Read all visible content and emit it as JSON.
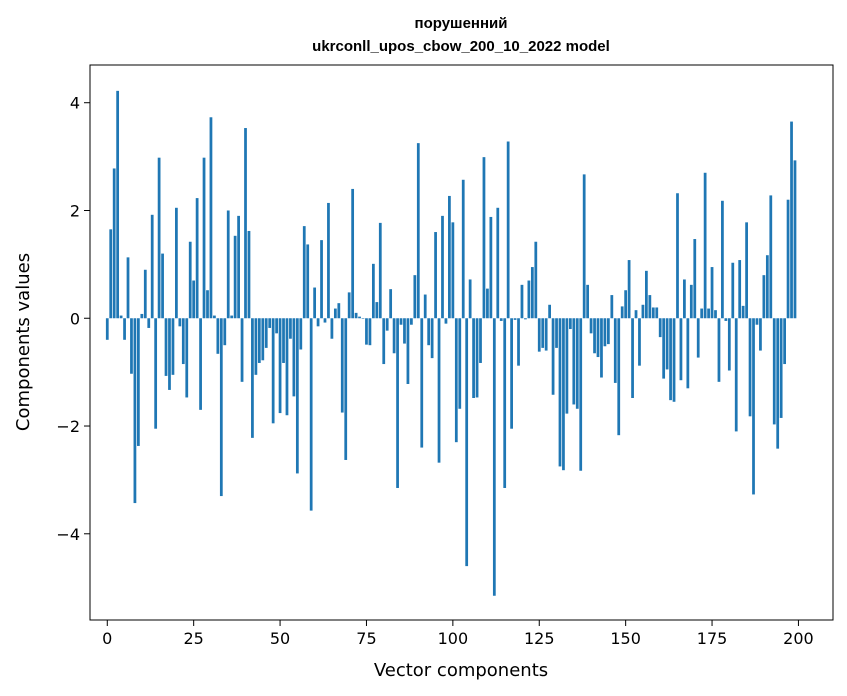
{
  "chart_data": {
    "type": "bar",
    "title": "порушенний",
    "subtitle": "ukrconll_upos_cbow_200_10_2022 model",
    "xlabel": "Vector components",
    "ylabel": "Components values",
    "xlim": [
      -5,
      210
    ],
    "ylim": [
      -5.6,
      4.7
    ],
    "xticks": [
      0,
      25,
      50,
      75,
      100,
      125,
      150,
      175,
      200
    ],
    "yticks": [
      -4,
      -2,
      0,
      2,
      4
    ],
    "ytick_labels": [
      "−4",
      "−2",
      "0",
      "2",
      "4"
    ],
    "grid": false,
    "bar_color": "#1f77b4",
    "x": [
      0,
      1,
      2,
      3,
      4,
      5,
      6,
      7,
      8,
      9,
      10,
      11,
      12,
      13,
      14,
      15,
      16,
      17,
      18,
      19,
      20,
      21,
      22,
      23,
      24,
      25,
      26,
      27,
      28,
      29,
      30,
      31,
      32,
      33,
      34,
      35,
      36,
      37,
      38,
      39,
      40,
      41,
      42,
      43,
      44,
      45,
      46,
      47,
      48,
      49,
      50,
      51,
      52,
      53,
      54,
      55,
      56,
      57,
      58,
      59,
      60,
      61,
      62,
      63,
      64,
      65,
      66,
      67,
      68,
      69,
      70,
      71,
      72,
      73,
      74,
      75,
      76,
      77,
      78,
      79,
      80,
      81,
      82,
      83,
      84,
      85,
      86,
      87,
      88,
      89,
      90,
      91,
      92,
      93,
      94,
      95,
      96,
      97,
      98,
      99,
      100,
      101,
      102,
      103,
      104,
      105,
      106,
      107,
      108,
      109,
      110,
      111,
      112,
      113,
      114,
      115,
      116,
      117,
      118,
      119,
      120,
      121,
      122,
      123,
      124,
      125,
      126,
      127,
      128,
      129,
      130,
      131,
      132,
      133,
      134,
      135,
      136,
      137,
      138,
      139,
      140,
      141,
      142,
      143,
      144,
      145,
      146,
      147,
      148,
      149,
      150,
      151,
      152,
      153,
      154,
      155,
      156,
      157,
      158,
      159,
      160,
      161,
      162,
      163,
      164,
      165,
      166,
      167,
      168,
      169,
      170,
      171,
      172,
      173,
      174,
      175,
      176,
      177,
      178,
      179,
      180,
      181,
      182,
      183,
      184,
      185,
      186,
      187,
      188,
      189,
      190,
      191,
      192,
      193,
      194,
      195,
      196,
      197,
      198,
      199
    ],
    "values": [
      -0.4,
      1.65,
      2.78,
      4.22,
      0.05,
      -0.4,
      1.13,
      -1.03,
      -3.43,
      -2.37,
      0.08,
      0.9,
      -0.18,
      1.92,
      -2.05,
      2.98,
      1.2,
      -1.07,
      -1.33,
      -1.05,
      2.05,
      -0.15,
      -0.85,
      -1.47,
      1.42,
      0.7,
      2.23,
      -1.7,
      2.98,
      0.52,
      3.73,
      0.05,
      -0.66,
      -3.3,
      -0.5,
      2.0,
      0.05,
      1.53,
      1.9,
      -1.18,
      3.53,
      1.62,
      -2.22,
      -1.05,
      -0.83,
      -0.78,
      -0.55,
      -0.18,
      -1.95,
      -0.28,
      -1.76,
      -0.83,
      -1.8,
      -0.38,
      -1.45,
      -2.88,
      -0.58,
      1.71,
      1.37,
      -3.57,
      0.57,
      -0.15,
      1.45,
      -0.08,
      2.14,
      -0.38,
      0.18,
      0.28,
      -1.75,
      -2.63,
      0.48,
      2.4,
      0.1,
      0.03,
      -0.01,
      -0.49,
      -0.5,
      1.01,
      0.3,
      1.77,
      -0.85,
      -0.23,
      0.54,
      -0.65,
      -3.15,
      -0.12,
      -0.47,
      -1.22,
      -0.12,
      0.8,
      3.25,
      -2.4,
      0.44,
      -0.5,
      -0.74,
      1.6,
      -2.68,
      1.9,
      -0.1,
      2.27,
      1.78,
      -2.3,
      -1.68,
      2.57,
      -4.6,
      0.72,
      -1.48,
      -1.47,
      -0.83,
      2.99,
      0.55,
      1.88,
      -5.15,
      2.05,
      -0.05,
      -3.15,
      3.28,
      -2.05,
      -0.03,
      -0.88,
      0.62,
      -0.02,
      0.7,
      0.95,
      1.42,
      -0.62,
      -0.55,
      -0.6,
      0.25,
      -1.42,
      -0.55,
      -2.75,
      -2.82,
      -1.77,
      -0.2,
      -1.6,
      -1.68,
      -2.83,
      2.67,
      0.62,
      -0.28,
      -0.65,
      -0.72,
      -1.1,
      -0.52,
      -0.48,
      0.43,
      -1.2,
      -2.17,
      0.22,
      0.52,
      1.08,
      -1.48,
      0.15,
      -0.88,
      0.25,
      0.88,
      0.43,
      0.2,
      0.2,
      -0.35,
      -1.12,
      -0.95,
      -1.52,
      -1.55,
      2.32,
      -1.15,
      0.72,
      -1.3,
      0.62,
      1.47,
      -0.73,
      0.18,
      2.7,
      0.18,
      0.95,
      0.15,
      -1.18,
      2.18,
      -0.05,
      -0.97,
      1.03,
      -2.1,
      1.08,
      0.23,
      1.78,
      -1.82,
      -3.27,
      -0.12,
      -0.6,
      0.8,
      1.17,
      2.28,
      -1.97,
      -2.42,
      -1.85,
      -0.85,
      2.2,
      3.65,
      2.93
    ]
  }
}
